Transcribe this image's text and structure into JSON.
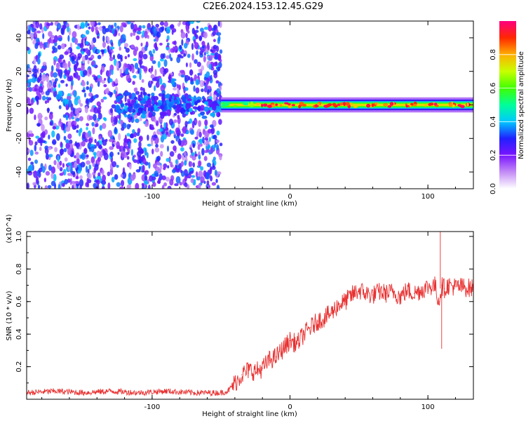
{
  "title": "C2E6.2024.153.12.45.G29",
  "chart_data": [
    {
      "type": "heatmap",
      "xlabel": "Height of straight line (km)",
      "ylabel": "Frequency (Hz)",
      "xlim": [
        -191,
        133
      ],
      "ylim": [
        -50,
        50
      ],
      "xticks": [
        -100,
        0,
        100
      ],
      "yticks": [
        -40,
        -20,
        0,
        20,
        40
      ],
      "grid": false,
      "colorbar": {
        "label": "Normalized spectral amplitude",
        "range": [
          0,
          1
        ],
        "ticks": [
          "0.0",
          "0.2",
          "0.4",
          "0.6",
          "0.8"
        ],
        "stops": [
          "#ffffff",
          "#c38cf5",
          "#7a14ff",
          "#2020ff",
          "#00c8ff",
          "#00ff9a",
          "#40ff00",
          "#c8ff00",
          "#ffb000",
          "#ff2800",
          "#ff0080"
        ]
      },
      "regions": [
        {
          "x_from": -191,
          "x_to": -50,
          "freq_from": -50,
          "freq_to": 50,
          "amplitude": "0.1-0.3 scattered noise"
        },
        {
          "x_from": -125,
          "x_to": -50,
          "freq_from": -8,
          "freq_to": 8,
          "amplitude": "0.2-0.4"
        },
        {
          "x_from": -50,
          "x_to": 133,
          "freq_from": -3,
          "freq_to": 3,
          "amplitude": "0.4-1.0 narrow line"
        }
      ]
    },
    {
      "type": "line",
      "xlabel": "Height of straight line (km)",
      "ylabel": "SNR (10 * v/v)",
      "y_multiplier": "(x10^4)",
      "xlim": [
        -191,
        133
      ],
      "ylim": [
        0,
        1.03
      ],
      "xticks": [
        -100,
        0,
        100
      ],
      "yticks": [
        "0.2",
        "0.4",
        "0.6",
        "0.8",
        "1.0"
      ],
      "grid": false,
      "series": [
        {
          "color": "#e83030",
          "x": [
            -191,
            -170,
            -150,
            -130,
            -110,
            -90,
            -70,
            -50,
            -45,
            -40,
            -35,
            -30,
            -25,
            -20,
            -15,
            -10,
            -5,
            0,
            5,
            10,
            15,
            20,
            25,
            30,
            35,
            40,
            45,
            50,
            55,
            60,
            65,
            70,
            75,
            80,
            85,
            90,
            95,
            100,
            105,
            108,
            110,
            112,
            115,
            120,
            125,
            133
          ],
          "y": [
            0.04,
            0.05,
            0.04,
            0.05,
            0.04,
            0.05,
            0.04,
            0.04,
            0.05,
            0.1,
            0.15,
            0.18,
            0.17,
            0.19,
            0.24,
            0.26,
            0.31,
            0.36,
            0.34,
            0.4,
            0.44,
            0.48,
            0.5,
            0.53,
            0.58,
            0.6,
            0.64,
            0.67,
            0.65,
            0.64,
            0.66,
            0.65,
            0.66,
            0.63,
            0.67,
            0.65,
            0.67,
            0.69,
            0.7,
            0.6,
            0.7,
            0.68,
            0.7,
            0.69,
            0.69,
            0.68
          ]
        }
      ]
    }
  ]
}
